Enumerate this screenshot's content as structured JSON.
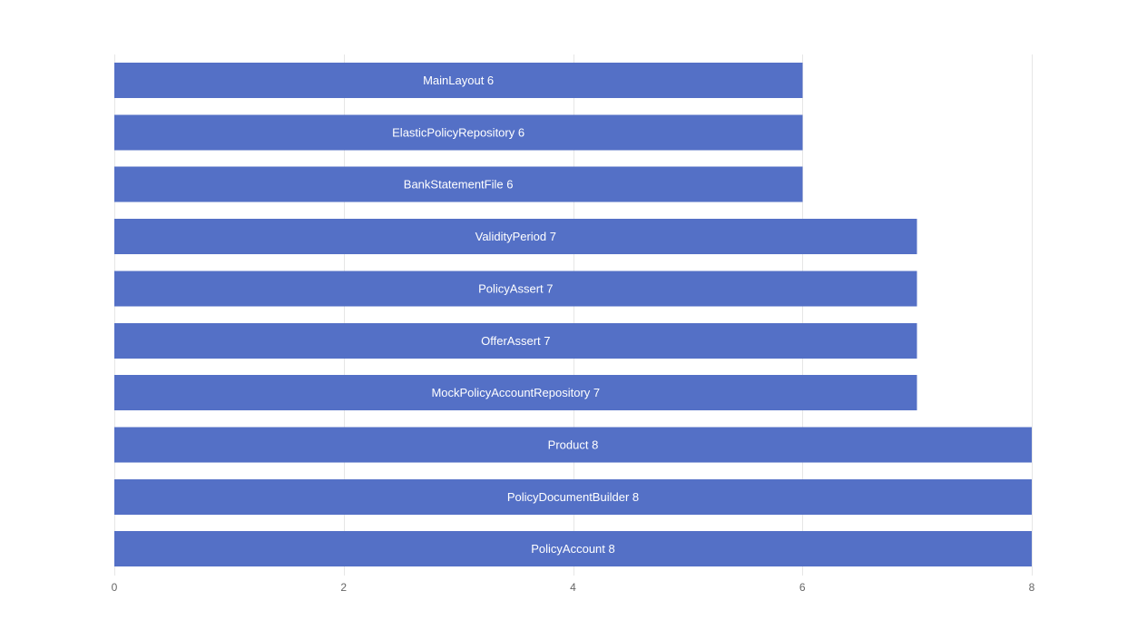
{
  "chart_data": {
    "type": "bar",
    "orientation": "horizontal",
    "categories": [
      "MainLayout",
      "ElasticPolicyRepository",
      "BankStatementFile",
      "ValidityPeriod",
      "PolicyAssert",
      "OfferAssert",
      "MockPolicyAccountRepository",
      "Product",
      "PolicyDocumentBuilder",
      "PolicyAccount"
    ],
    "values": [
      6,
      6,
      6,
      7,
      7,
      7,
      7,
      8,
      8,
      8
    ],
    "xlim": [
      0,
      8
    ],
    "x_ticks": [
      0,
      2,
      4,
      6,
      8
    ],
    "x_tick_labels": [
      "0",
      "2",
      "4",
      "6",
      "8"
    ],
    "bar_labels": [
      "MainLayout 6",
      "ElasticPolicyRepository 6",
      "BankStatementFile 6",
      "ValidityPeriod 7",
      "PolicyAssert 7",
      "OfferAssert 7",
      "MockPolicyAccountRepository 7",
      "Product 8",
      "PolicyDocumentBuilder 8",
      "PolicyAccount 8"
    ],
    "grid": true,
    "colors": {
      "bar": "#5470c6",
      "grid": "#e6e6e6",
      "label": "#ffffff",
      "tick": "#666666"
    },
    "title": "",
    "xlabel": "",
    "ylabel": ""
  }
}
